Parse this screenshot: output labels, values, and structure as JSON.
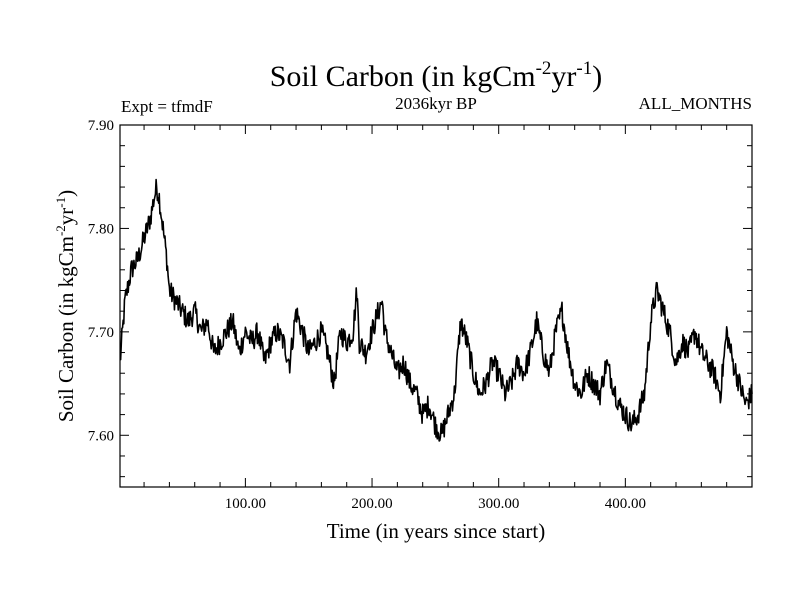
{
  "chart_data": {
    "type": "line",
    "title_main": "Soil Carbon (in kgCm",
    "title_sup1": "-2",
    "title_mid": "yr",
    "title_sup2": "-1",
    "title_close": ")",
    "subtitle_left": "Expt = tfmdF",
    "subtitle_center": "2036kyr BP",
    "subtitle_right": "ALL_MONTHS",
    "xlabel": "Time (in years since start)",
    "ylabel_main": "Soil Carbon (in kgCm",
    "ylabel_sup1": "-2",
    "ylabel_mid": "yr",
    "ylabel_sup2": "-1",
    "ylabel_close": ")",
    "xlim": [
      1,
      500
    ],
    "ylim": [
      7.55,
      7.9
    ],
    "x_ticks": [
      {
        "value": 100,
        "label": "100.00"
      },
      {
        "value": 200,
        "label": "200.00"
      },
      {
        "value": 300,
        "label": "300.00"
      },
      {
        "value": 400,
        "label": "400.00"
      }
    ],
    "y_ticks": [
      {
        "value": 7.6,
        "label": "7.60"
      },
      {
        "value": 7.7,
        "label": "7.70"
      },
      {
        "value": 7.8,
        "label": "7.80"
      },
      {
        "value": 7.9,
        "label": "7.90"
      }
    ],
    "line_color": "#000000",
    "series": [
      {
        "name": "Soil Carbon",
        "x": [
          1,
          5,
          10,
          15,
          20,
          25,
          28,
          30,
          32,
          35,
          38,
          40,
          45,
          50,
          55,
          60,
          65,
          70,
          75,
          80,
          85,
          90,
          95,
          100,
          105,
          110,
          115,
          120,
          125,
          130,
          135,
          140,
          145,
          150,
          155,
          160,
          165,
          170,
          175,
          180,
          185,
          188,
          190,
          195,
          200,
          205,
          208,
          210,
          215,
          220,
          225,
          230,
          235,
          240,
          245,
          250,
          255,
          260,
          265,
          270,
          275,
          280,
          285,
          290,
          295,
          300,
          305,
          310,
          315,
          320,
          325,
          330,
          335,
          340,
          345,
          350,
          355,
          360,
          365,
          370,
          375,
          380,
          385,
          390,
          395,
          400,
          405,
          410,
          415,
          420,
          423,
          425,
          430,
          435,
          440,
          445,
          450,
          455,
          460,
          465,
          470,
          475,
          480,
          485,
          490,
          495,
          500
        ],
        "y": [
          7.67,
          7.73,
          7.76,
          7.77,
          7.79,
          7.81,
          7.83,
          7.84,
          7.83,
          7.8,
          7.77,
          7.74,
          7.73,
          7.72,
          7.71,
          7.72,
          7.7,
          7.71,
          7.68,
          7.69,
          7.7,
          7.71,
          7.68,
          7.7,
          7.69,
          7.7,
          7.67,
          7.69,
          7.7,
          7.69,
          7.67,
          7.72,
          7.7,
          7.68,
          7.69,
          7.7,
          7.68,
          7.65,
          7.7,
          7.69,
          7.7,
          7.74,
          7.69,
          7.68,
          7.7,
          7.72,
          7.73,
          7.7,
          7.68,
          7.66,
          7.67,
          7.65,
          7.64,
          7.62,
          7.63,
          7.61,
          7.6,
          7.62,
          7.64,
          7.71,
          7.69,
          7.66,
          7.64,
          7.65,
          7.67,
          7.66,
          7.64,
          7.65,
          7.67,
          7.66,
          7.68,
          7.71,
          7.68,
          7.66,
          7.7,
          7.72,
          7.68,
          7.65,
          7.64,
          7.66,
          7.65,
          7.64,
          7.67,
          7.65,
          7.63,
          7.62,
          7.61,
          7.62,
          7.64,
          7.71,
          7.73,
          7.74,
          7.72,
          7.7,
          7.67,
          7.69,
          7.68,
          7.7,
          7.68,
          7.67,
          7.66,
          7.64,
          7.7,
          7.67,
          7.65,
          7.63,
          7.64
        ]
      }
    ]
  }
}
